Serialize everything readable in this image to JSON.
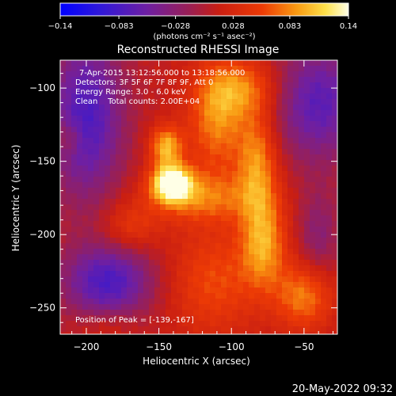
{
  "chart_data": {
    "type": "heatmap",
    "title": "Reconstructed RHESSI Image",
    "xlabel": "Heliocentric X (arcsec)",
    "ylabel": "Heliocentric Y (arcsec)",
    "xlim": [
      -218,
      -27
    ],
    "ylim": [
      -268,
      -81
    ],
    "x_ticks": [
      -200,
      -150,
      -100,
      -50
    ],
    "y_ticks": [
      -100,
      -150,
      -200,
      -250
    ],
    "colorbar": {
      "min": -0.14,
      "max": 0.14,
      "ticks": [
        -0.14,
        -0.083,
        -0.028,
        0.028,
        0.083,
        0.14
      ],
      "tick_labels": [
        "-0.14",
        "-0.083",
        "-0.028",
        "0.028",
        "0.083",
        "0.14"
      ],
      "unit_label": "(photons cm⁻² s⁻¹ asec⁻²)"
    },
    "annotations": [
      "7-Apr-2015 13:12:56.000 to 13:18:56.000",
      "Detectors: 3F 5F 6F 7F 8F 9F, Att 0",
      "Energy Range: 3.0 - 6.0 keV",
      "Clean    Total counts: 2.00E+04"
    ],
    "peak_text": "Position of Peak = [-139,-167]",
    "peak_position": [
      -139,
      -167
    ],
    "sources": [
      {
        "x": -141,
        "y": -165,
        "sx": 10,
        "sy": 9,
        "amp": 0.14
      },
      {
        "x": -145,
        "y": -140,
        "sx": 8,
        "sy": 10,
        "amp": 0.09
      },
      {
        "x": -120,
        "y": -175,
        "sx": 26,
        "sy": 12,
        "amp": 0.06
      },
      {
        "x": -110,
        "y": -122,
        "sx": 14,
        "sy": 26,
        "amp": 0.07
      },
      {
        "x": -92,
        "y": -100,
        "sx": 18,
        "sy": 14,
        "amp": 0.06
      },
      {
        "x": -82,
        "y": -150,
        "sx": 10,
        "sy": 24,
        "amp": 0.075
      },
      {
        "x": -78,
        "y": -205,
        "sx": 11,
        "sy": 22,
        "amp": 0.08
      },
      {
        "x": -50,
        "y": -242,
        "sx": 14,
        "sy": 16,
        "amp": 0.07
      },
      {
        "x": -112,
        "y": -232,
        "sx": 22,
        "sy": 26,
        "amp": 0.05
      },
      {
        "x": -170,
        "y": -195,
        "sx": 14,
        "sy": 12,
        "amp": 0.04
      },
      {
        "x": -212,
        "y": -134,
        "sx": 7,
        "sy": 8,
        "amp": 0.03
      },
      {
        "x": -185,
        "y": -262,
        "sx": 14,
        "sy": 8,
        "amp": 0.02
      },
      {
        "x": -200,
        "y": -120,
        "sx": 18,
        "sy": 40,
        "amp": -0.09
      },
      {
        "x": -185,
        "y": -232,
        "sx": 22,
        "sy": 18,
        "amp": -0.09
      },
      {
        "x": -40,
        "y": -110,
        "sx": 22,
        "sy": 28,
        "amp": -0.08
      },
      {
        "x": -40,
        "y": -200,
        "sx": 10,
        "sy": 22,
        "amp": -0.04
      }
    ],
    "baseline": 0.01
  },
  "footer": {
    "date": "20-May-2022 09:32"
  }
}
